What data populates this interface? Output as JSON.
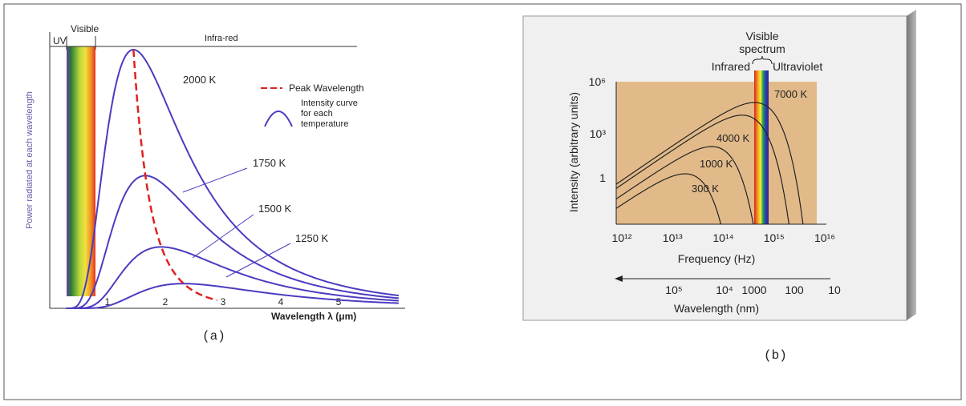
{
  "panel_a": {
    "band_labels": [
      "UV",
      "Visible",
      "Infra-red"
    ],
    "y_axis_label": "Power radiated at each wavelength",
    "x_axis_label": "Wavelength λ (μm)",
    "x_ticks": [
      "1",
      "2",
      "3",
      "4",
      "5"
    ],
    "curve_labels": [
      "2000 K",
      "1750 K",
      "1500 K",
      "1250 K"
    ],
    "legend": {
      "peak": "Peak Wavelength",
      "intensity": [
        "Intensity curve",
        "for each",
        "temperature"
      ]
    },
    "caption": "(a)"
  },
  "panel_b": {
    "visible_label": [
      "Visible",
      "spectrum"
    ],
    "band_labels": [
      "Infrared",
      "Ultraviolet"
    ],
    "y_axis_label": "Intensity (arbitrary units)",
    "y_ticks": [
      "10⁶",
      "10³",
      "1"
    ],
    "x_axis_label": "Frequency (Hz)",
    "x_ticks": [
      "10¹²",
      "10¹³",
      "10¹⁴",
      "10¹⁵",
      "10¹⁶"
    ],
    "wavelength_label": "Wavelength (nm)",
    "wavelength_ticks": [
      "10⁵",
      "10⁴",
      "1000",
      "100",
      "10"
    ],
    "curve_labels": [
      "7000 K",
      "4000 K",
      "1000 K",
      "300 K"
    ],
    "caption": "(b)"
  }
}
